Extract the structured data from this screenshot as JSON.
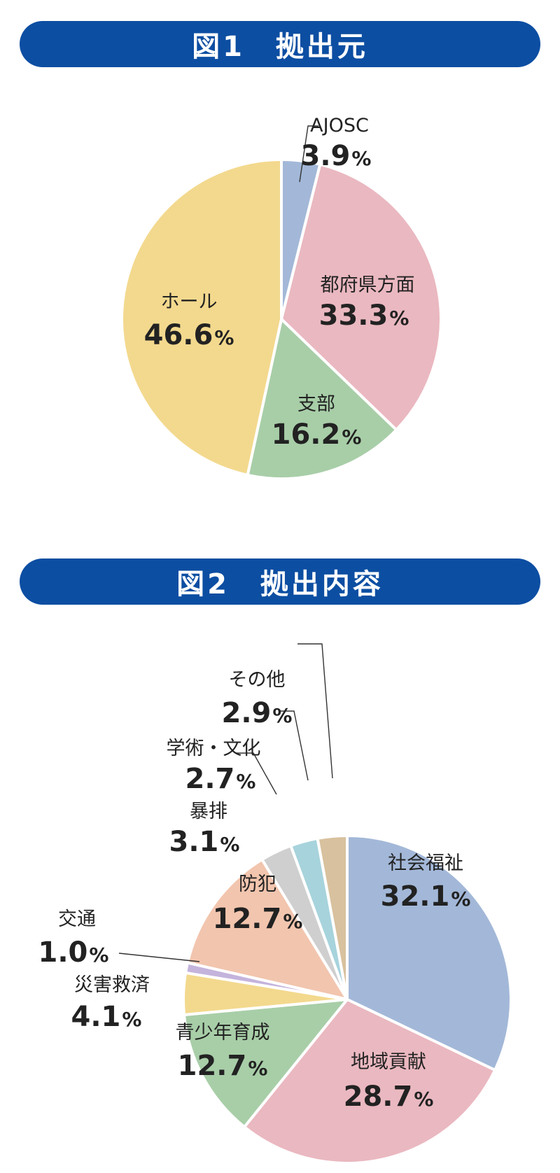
{
  "figure1": {
    "title": "図1　拠出元",
    "chart_data": {
      "type": "pie",
      "slices": [
        {
          "label": "AJOSC",
          "value": 3.9,
          "display": "3.9%",
          "color": "#a3b8d8"
        },
        {
          "label": "都府県方面",
          "value": 33.3,
          "display": "33.3%",
          "color": "#eab8c0"
        },
        {
          "label": "支部",
          "value": 16.2,
          "display": "16.2%",
          "color": "#a8cea8"
        },
        {
          "label": "ホール",
          "value": 46.6,
          "display": "46.6%",
          "color": "#f3d98e"
        }
      ]
    }
  },
  "figure2": {
    "title": "図2　拠出内容",
    "chart_data": {
      "type": "pie",
      "slices": [
        {
          "label": "社会福祉",
          "value": 32.1,
          "display": "32.1%",
          "color": "#a3b8d8"
        },
        {
          "label": "地域貢献",
          "value": 28.7,
          "display": "28.7%",
          "color": "#eab8c0"
        },
        {
          "label": "青少年育成",
          "value": 12.7,
          "display": "12.7%",
          "color": "#a8cea8"
        },
        {
          "label": "災害救済",
          "value": 4.1,
          "display": "4.1%",
          "color": "#f3d98e"
        },
        {
          "label": "交通",
          "value": 1.0,
          "display": "1.0%",
          "color": "#c4b4dc"
        },
        {
          "label": "防犯",
          "value": 12.7,
          "display": "12.7%",
          "color": "#f2c5ae"
        },
        {
          "label": "暴排",
          "value": 3.1,
          "display": "3.1%",
          "color": "#cfcfcf"
        },
        {
          "label": "学術・文化",
          "value": 2.7,
          "display": "2.7%",
          "color": "#a7d3dc"
        },
        {
          "label": "その他",
          "value": 2.9,
          "display": "2.9%",
          "color": "#d8c19e"
        }
      ]
    }
  }
}
